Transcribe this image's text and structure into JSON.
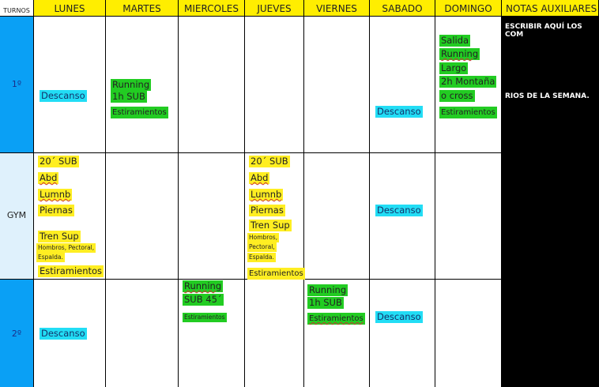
{
  "header": {
    "turnos": "TURNOS",
    "days": [
      "LUNES",
      "MARTES",
      "MIERCOLES",
      "JUEVES",
      "VIERNES",
      "SABADO",
      "DOMINGO"
    ],
    "notes": "NOTAS AUXILIARES"
  },
  "turns": [
    "1º",
    "GYM",
    "2º"
  ],
  "notes": {
    "line1": "ESCRIBIR AQUÍ LOS COM",
    "line2": "RIOS DE LA SEMANA."
  },
  "row1": {
    "lunes": "Descanso",
    "martes": [
      "Running",
      "1h SUB",
      "Estiramientos"
    ],
    "sabado": "Descanso",
    "domingo": [
      "Salida",
      "Running",
      "Largo",
      "2h Montaña",
      "o cross",
      "Estiramientos"
    ]
  },
  "gym": {
    "lunes": [
      "20´ SUB",
      "Abd",
      "Lumnb",
      "Piernas",
      "Tren Sup",
      "Hombros, Pectoral,",
      "Espalda.",
      "Estiramientos"
    ],
    "jueves": [
      "20´ SUB",
      "Abd",
      "Lumnb",
      "Piernas",
      "Tren Sup",
      "Hombros,",
      "Pectoral,",
      "Espalda.",
      "Estiramientos"
    ],
    "sabado": "Descanso"
  },
  "row2": {
    "lunes": "Descanso",
    "miercoles": [
      "Running",
      "SUB 45´",
      "Estiramientos"
    ],
    "viernes": [
      "Running",
      "1h SUB",
      "Estiramientos"
    ],
    "sabado": "Descanso"
  },
  "colors": {
    "header": "#ffee00",
    "turn_blue": "#0aa0f5",
    "gym_blue": "#dff1fc",
    "green": "#22cc22",
    "yellow": "#ffee22",
    "cyan": "#22ddf5"
  }
}
